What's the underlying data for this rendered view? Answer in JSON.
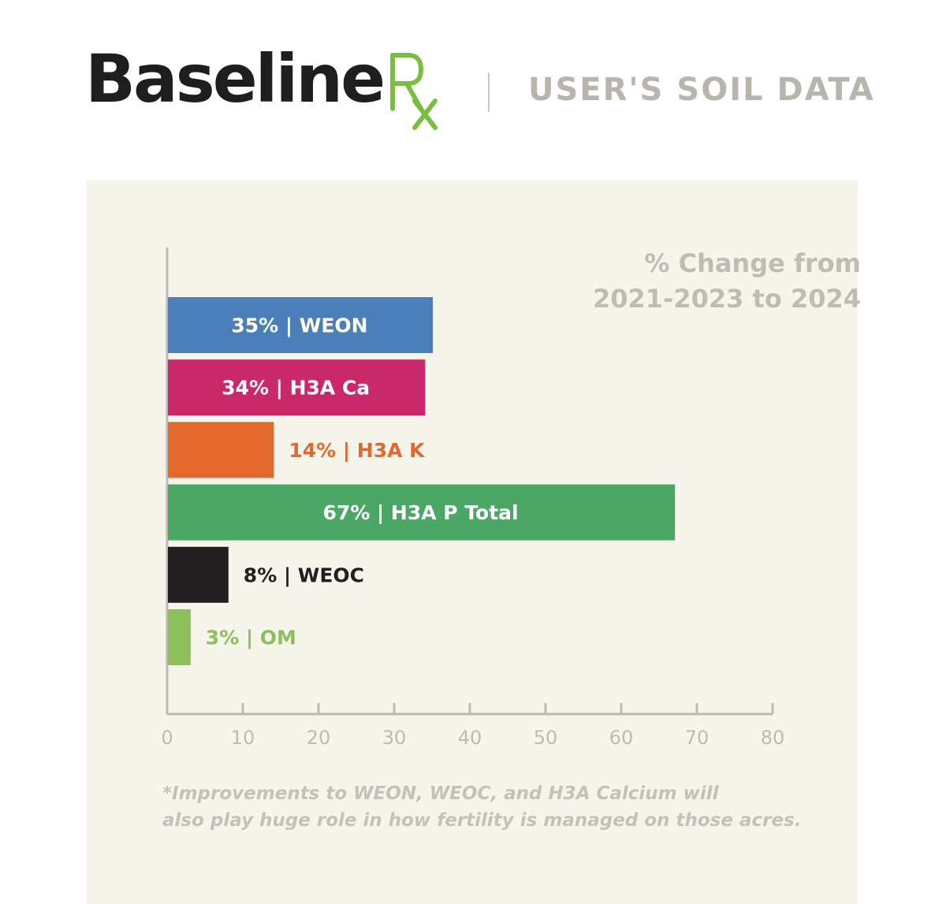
{
  "header": {
    "logo_text": "Baseline",
    "logo_mark": "Rx",
    "subtitle": "USER'S SOIL DATA"
  },
  "chart_data": {
    "type": "bar",
    "orientation": "horizontal",
    "title_lines": [
      "% Change from",
      "2021-2023 to 2024"
    ],
    "bars": [
      {
        "label": "35% | WEON",
        "category": "WEON",
        "value": 35,
        "color": "#4a7fb9",
        "label_color": "#ffffff",
        "label_inside": true
      },
      {
        "label": "34% | H3A Ca",
        "category": "H3A Ca",
        "value": 34,
        "color": "#c9296a",
        "label_color": "#ffffff",
        "label_inside": true
      },
      {
        "label": "14% | H3A K",
        "category": "H3A K",
        "value": 14,
        "color": "#e2682e",
        "label_color": "#e2682e",
        "label_inside": false
      },
      {
        "label": "67% | H3A P Total",
        "category": "H3A P Total",
        "value": 67,
        "color": "#4ba864",
        "label_color": "#ffffff",
        "label_inside": true
      },
      {
        "label": "8% | WEOC",
        "category": "WEOC",
        "value": 8,
        "color": "#231f20",
        "label_color": "#231f20",
        "label_inside": false
      },
      {
        "label": "3% | OM",
        "category": "OM",
        "value": 3,
        "color": "#8bc05a",
        "label_color": "#8bc05a",
        "label_inside": false
      }
    ],
    "xlim": [
      0,
      80
    ],
    "xticks": [
      "0",
      "10",
      "20",
      "30",
      "40",
      "50",
      "60",
      "70",
      "80"
    ],
    "grid": false
  },
  "footnote": {
    "line1": "*Improvements to WEON, WEOC, and H3A Calcium will",
    "line2": "also play huge role in how fertility is managed on those acres."
  },
  "colors": {
    "panel_bg": "#f6f5ec",
    "axis": "#bdbab3",
    "logo_green": "#79bd43"
  }
}
